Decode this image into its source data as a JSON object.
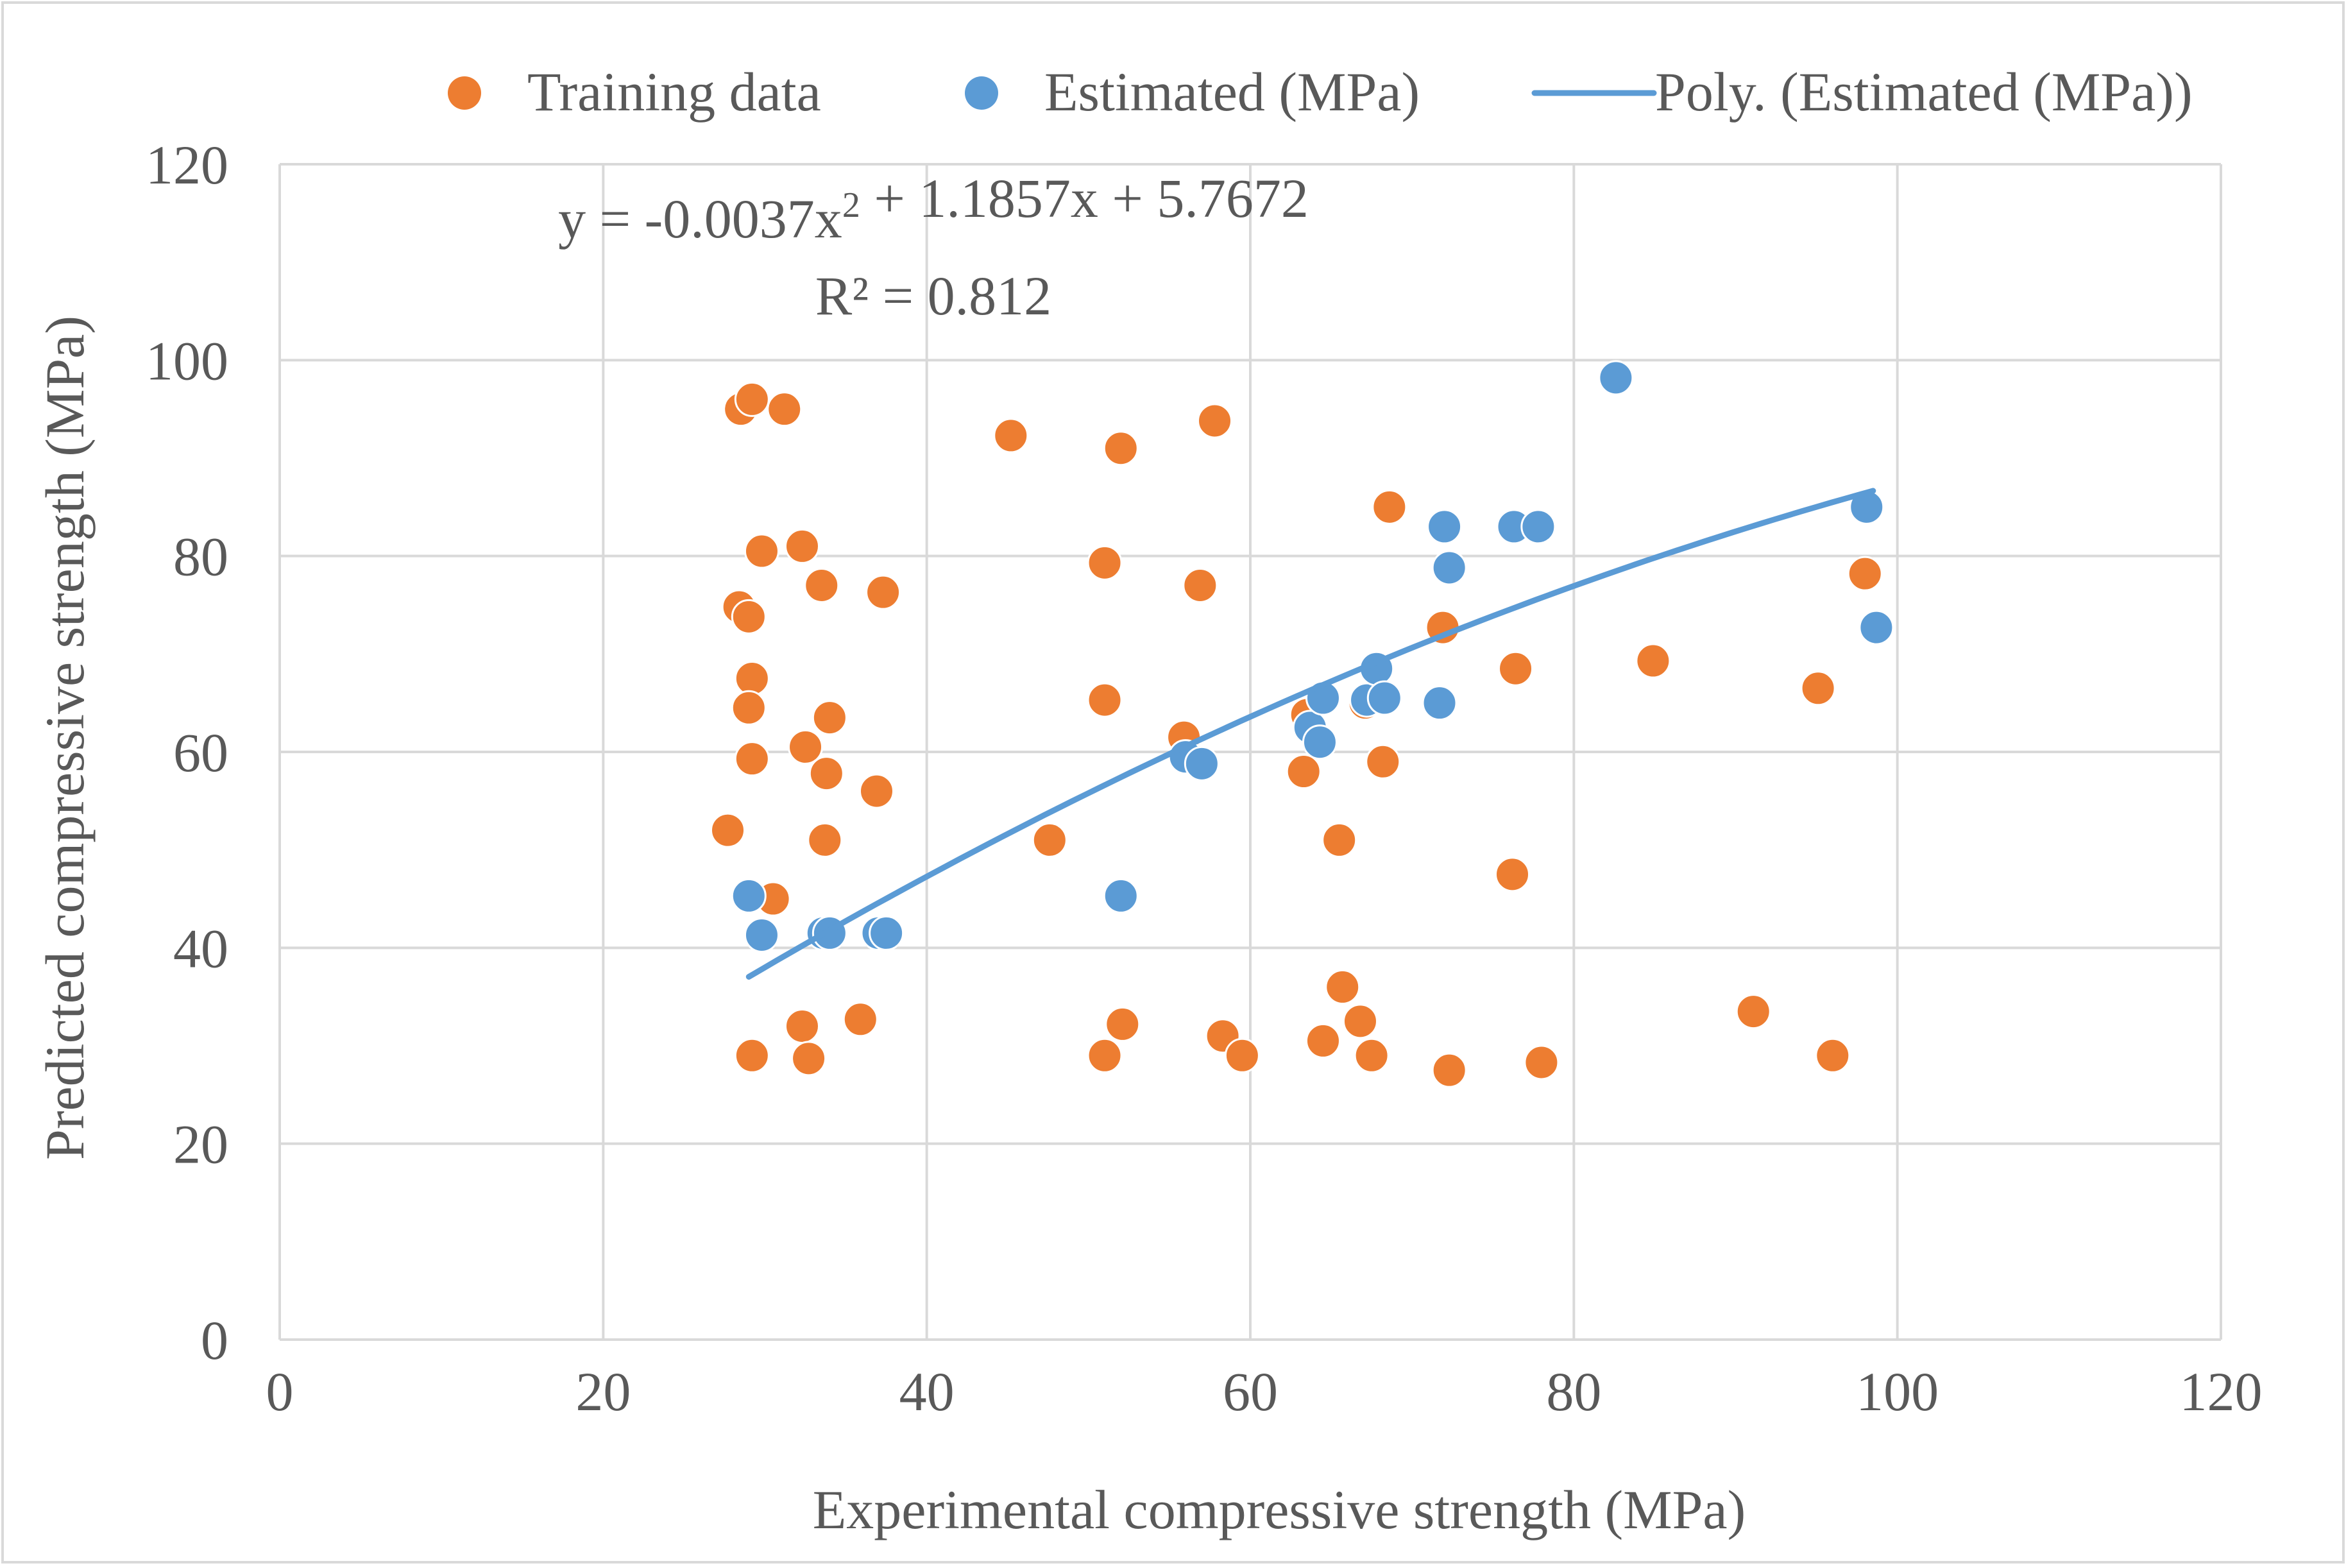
{
  "chart_data": {
    "type": "scatter",
    "xlabel": "Experimental compressive strength (MPa)",
    "ylabel": "Predicted compressive strength (MPa)",
    "xlim": [
      0,
      120
    ],
    "ylim": [
      0,
      120
    ],
    "x_ticks": [
      0,
      20,
      40,
      60,
      80,
      100,
      120
    ],
    "y_ticks": [
      0,
      20,
      40,
      60,
      80,
      100,
      120
    ],
    "grid": true,
    "legend_position": "top",
    "equation": "y = -0.0037x² + 1.1857x + 5.7672",
    "r_squared": "R² = 0.812",
    "trendline": {
      "name": "Poly. (Estimated (MPa))",
      "type": "polynomial",
      "coefficients": [
        -0.0037,
        1.1857,
        5.7672
      ],
      "x_range": [
        29.0,
        98.5
      ],
      "color": "#5B9BD5"
    },
    "series": [
      {
        "name": "Training data",
        "color": "#ED7D31",
        "points": [
          [
            28.5,
            95.0
          ],
          [
            29.2,
            96.0
          ],
          [
            31.2,
            95.0
          ],
          [
            28.4,
            74.8
          ],
          [
            29.0,
            73.8
          ],
          [
            29.8,
            80.5
          ],
          [
            32.3,
            81.0
          ],
          [
            33.5,
            77.0
          ],
          [
            37.3,
            76.3
          ],
          [
            29.2,
            67.5
          ],
          [
            29.0,
            64.5
          ],
          [
            34.0,
            63.5
          ],
          [
            32.5,
            60.5
          ],
          [
            29.2,
            59.3
          ],
          [
            33.8,
            57.8
          ],
          [
            36.9,
            56.0
          ],
          [
            27.7,
            52.0
          ],
          [
            33.7,
            51.0
          ],
          [
            30.5,
            45.0
          ],
          [
            35.9,
            32.7
          ],
          [
            32.3,
            32.0
          ],
          [
            29.2,
            29.0
          ],
          [
            32.7,
            28.7
          ],
          [
            45.2,
            92.3
          ],
          [
            52.0,
            91.0
          ],
          [
            57.8,
            93.8
          ],
          [
            51.0,
            79.3
          ],
          [
            56.9,
            77.0
          ],
          [
            51.0,
            65.3
          ],
          [
            55.9,
            61.5
          ],
          [
            47.6,
            51.0
          ],
          [
            52.1,
            32.2
          ],
          [
            51.0,
            29.0
          ],
          [
            58.3,
            31.0
          ],
          [
            59.5,
            29.0
          ],
          [
            63.3,
            58.0
          ],
          [
            63.5,
            63.8
          ],
          [
            65.5,
            51.0
          ],
          [
            65.7,
            36.0
          ],
          [
            64.5,
            30.5
          ],
          [
            66.8,
            32.5
          ],
          [
            67.5,
            29.0
          ],
          [
            67.1,
            65.0
          ],
          [
            68.2,
            59.0
          ],
          [
            68.6,
            85.0
          ],
          [
            71.9,
            72.7
          ],
          [
            72.3,
            27.5
          ],
          [
            76.2,
            47.5
          ],
          [
            76.4,
            68.5
          ],
          [
            78.0,
            28.3
          ],
          [
            84.9,
            69.3
          ],
          [
            91.1,
            33.5
          ],
          [
            95.1,
            66.5
          ],
          [
            96.0,
            29.0
          ],
          [
            98.0,
            78.2
          ]
        ]
      },
      {
        "name": "Estimated (MPa)",
        "color": "#5B9BD5",
        "points": [
          [
            29.0,
            45.3
          ],
          [
            29.8,
            41.3
          ],
          [
            33.6,
            41.5
          ],
          [
            34.0,
            41.5
          ],
          [
            37.0,
            41.5
          ],
          [
            37.5,
            41.5
          ],
          [
            52.0,
            45.3
          ],
          [
            56.0,
            59.5
          ],
          [
            57.0,
            58.8
          ],
          [
            63.7,
            62.5
          ],
          [
            64.3,
            61.0
          ],
          [
            64.5,
            65.5
          ],
          [
            67.2,
            65.3
          ],
          [
            67.8,
            68.5
          ],
          [
            68.3,
            65.5
          ],
          [
            71.7,
            65.0
          ],
          [
            72.0,
            83.0
          ],
          [
            72.3,
            78.8
          ],
          [
            76.3,
            83.0
          ],
          [
            77.8,
            83.0
          ],
          [
            82.6,
            98.2
          ],
          [
            98.1,
            85.0
          ],
          [
            98.7,
            72.7
          ]
        ]
      }
    ]
  }
}
